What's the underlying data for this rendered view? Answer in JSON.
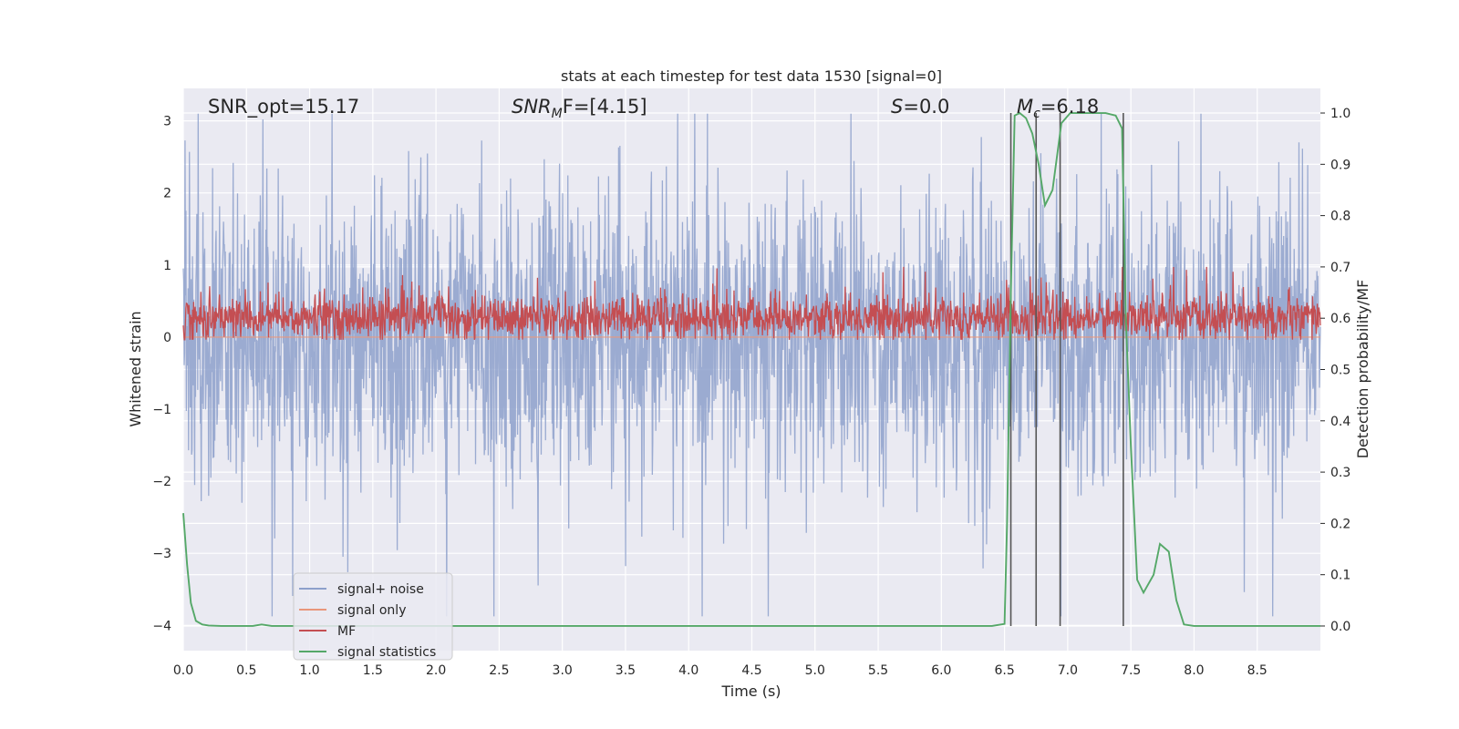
{
  "chart_data": {
    "type": "line",
    "title": "stats at each timestep for test data 1530 [signal=0]",
    "xlabel": "Time (s)",
    "ylabel_left": "Whitened strain",
    "ylabel_right": "Detection probability/MF",
    "xlim": [
      0.0,
      9.0
    ],
    "ylim_left": [
      -4.35,
      3.45
    ],
    "ylim_right": [
      -0.048,
      1.048
    ],
    "xticks": [
      "0.0",
      "0.5",
      "1.0",
      "1.5",
      "2.0",
      "2.5",
      "3.0",
      "3.5",
      "4.0",
      "4.5",
      "5.0",
      "5.5",
      "6.0",
      "6.5",
      "7.0",
      "7.5",
      "8.0",
      "8.5"
    ],
    "yticks_left": [
      "3",
      "2",
      "1",
      "0",
      "−1",
      "−2",
      "−3",
      "−4"
    ],
    "yticks_right": [
      "1.0",
      "0.9",
      "0.8",
      "0.7",
      "0.6",
      "0.5",
      "0.4",
      "0.3",
      "0.2",
      "0.1",
      "0.0"
    ],
    "grid": true,
    "annotations": {
      "snr_opt": "SNR_opt=15.17",
      "snr_mf_sym": "SNR",
      "snr_mf_sub": "M",
      "snr_mf_rest": "F=[4.15]",
      "s_sym": "S",
      "s_rest": "=0.0",
      "mc_sym": "M",
      "mc_sub": "c",
      "mc_rest": "=6.18"
    },
    "vertical_markers_x": [
      6.55,
      6.75,
      6.94,
      7.44
    ],
    "series": [
      {
        "name": "signal+ noise",
        "color": "#8da0cb",
        "axis": "left",
        "kind": "noise",
        "amp_typical": 1.3,
        "amp_peak": 3.1
      },
      {
        "name": "signal only",
        "color": "#e9967a",
        "axis": "left",
        "kind": "flat",
        "value": 0.0
      },
      {
        "name": "MF",
        "color": "#c44e52",
        "axis": "right",
        "kind": "band",
        "center": 0.6,
        "lower": 0.558,
        "upper": 0.7
      },
      {
        "name": "signal statistics",
        "color": "#55a868",
        "axis": "right",
        "kind": "line",
        "x": [
          0.0,
          0.03,
          0.06,
          0.1,
          0.15,
          0.2,
          0.3,
          0.45,
          0.55,
          0.62,
          0.7,
          0.8,
          1.0,
          2.0,
          3.0,
          4.0,
          5.0,
          6.0,
          6.4,
          6.5,
          6.52,
          6.55,
          6.58,
          6.62,
          6.67,
          6.72,
          6.77,
          6.82,
          6.88,
          6.95,
          7.02,
          7.1,
          7.2,
          7.3,
          7.38,
          7.43,
          7.46,
          7.5,
          7.55,
          7.6,
          7.68,
          7.73,
          7.8,
          7.86,
          7.92,
          8.0,
          8.5,
          9.0
        ],
        "y": [
          0.22,
          0.12,
          0.045,
          0.01,
          0.003,
          0.001,
          0.0,
          0.0,
          0.0,
          0.003,
          0.0,
          0.0,
          0.0,
          0.0,
          0.0,
          0.0,
          0.0,
          0.0,
          0.0,
          0.004,
          0.2,
          0.65,
          0.995,
          1.0,
          0.99,
          0.96,
          0.9,
          0.82,
          0.85,
          0.98,
          1.0,
          1.0,
          1.0,
          1.0,
          0.995,
          0.97,
          0.6,
          0.35,
          0.09,
          0.065,
          0.1,
          0.16,
          0.145,
          0.05,
          0.003,
          0.0,
          0.0,
          0.0
        ]
      }
    ],
    "legend": {
      "location": "lower-left",
      "entries": [
        {
          "label": "signal+ noise",
          "color": "#8da0cb"
        },
        {
          "label": "signal only",
          "color": "#e9967a"
        },
        {
          "label": "MF",
          "color": "#c44e52"
        },
        {
          "label": "signal statistics",
          "color": "#55a868"
        }
      ]
    }
  }
}
